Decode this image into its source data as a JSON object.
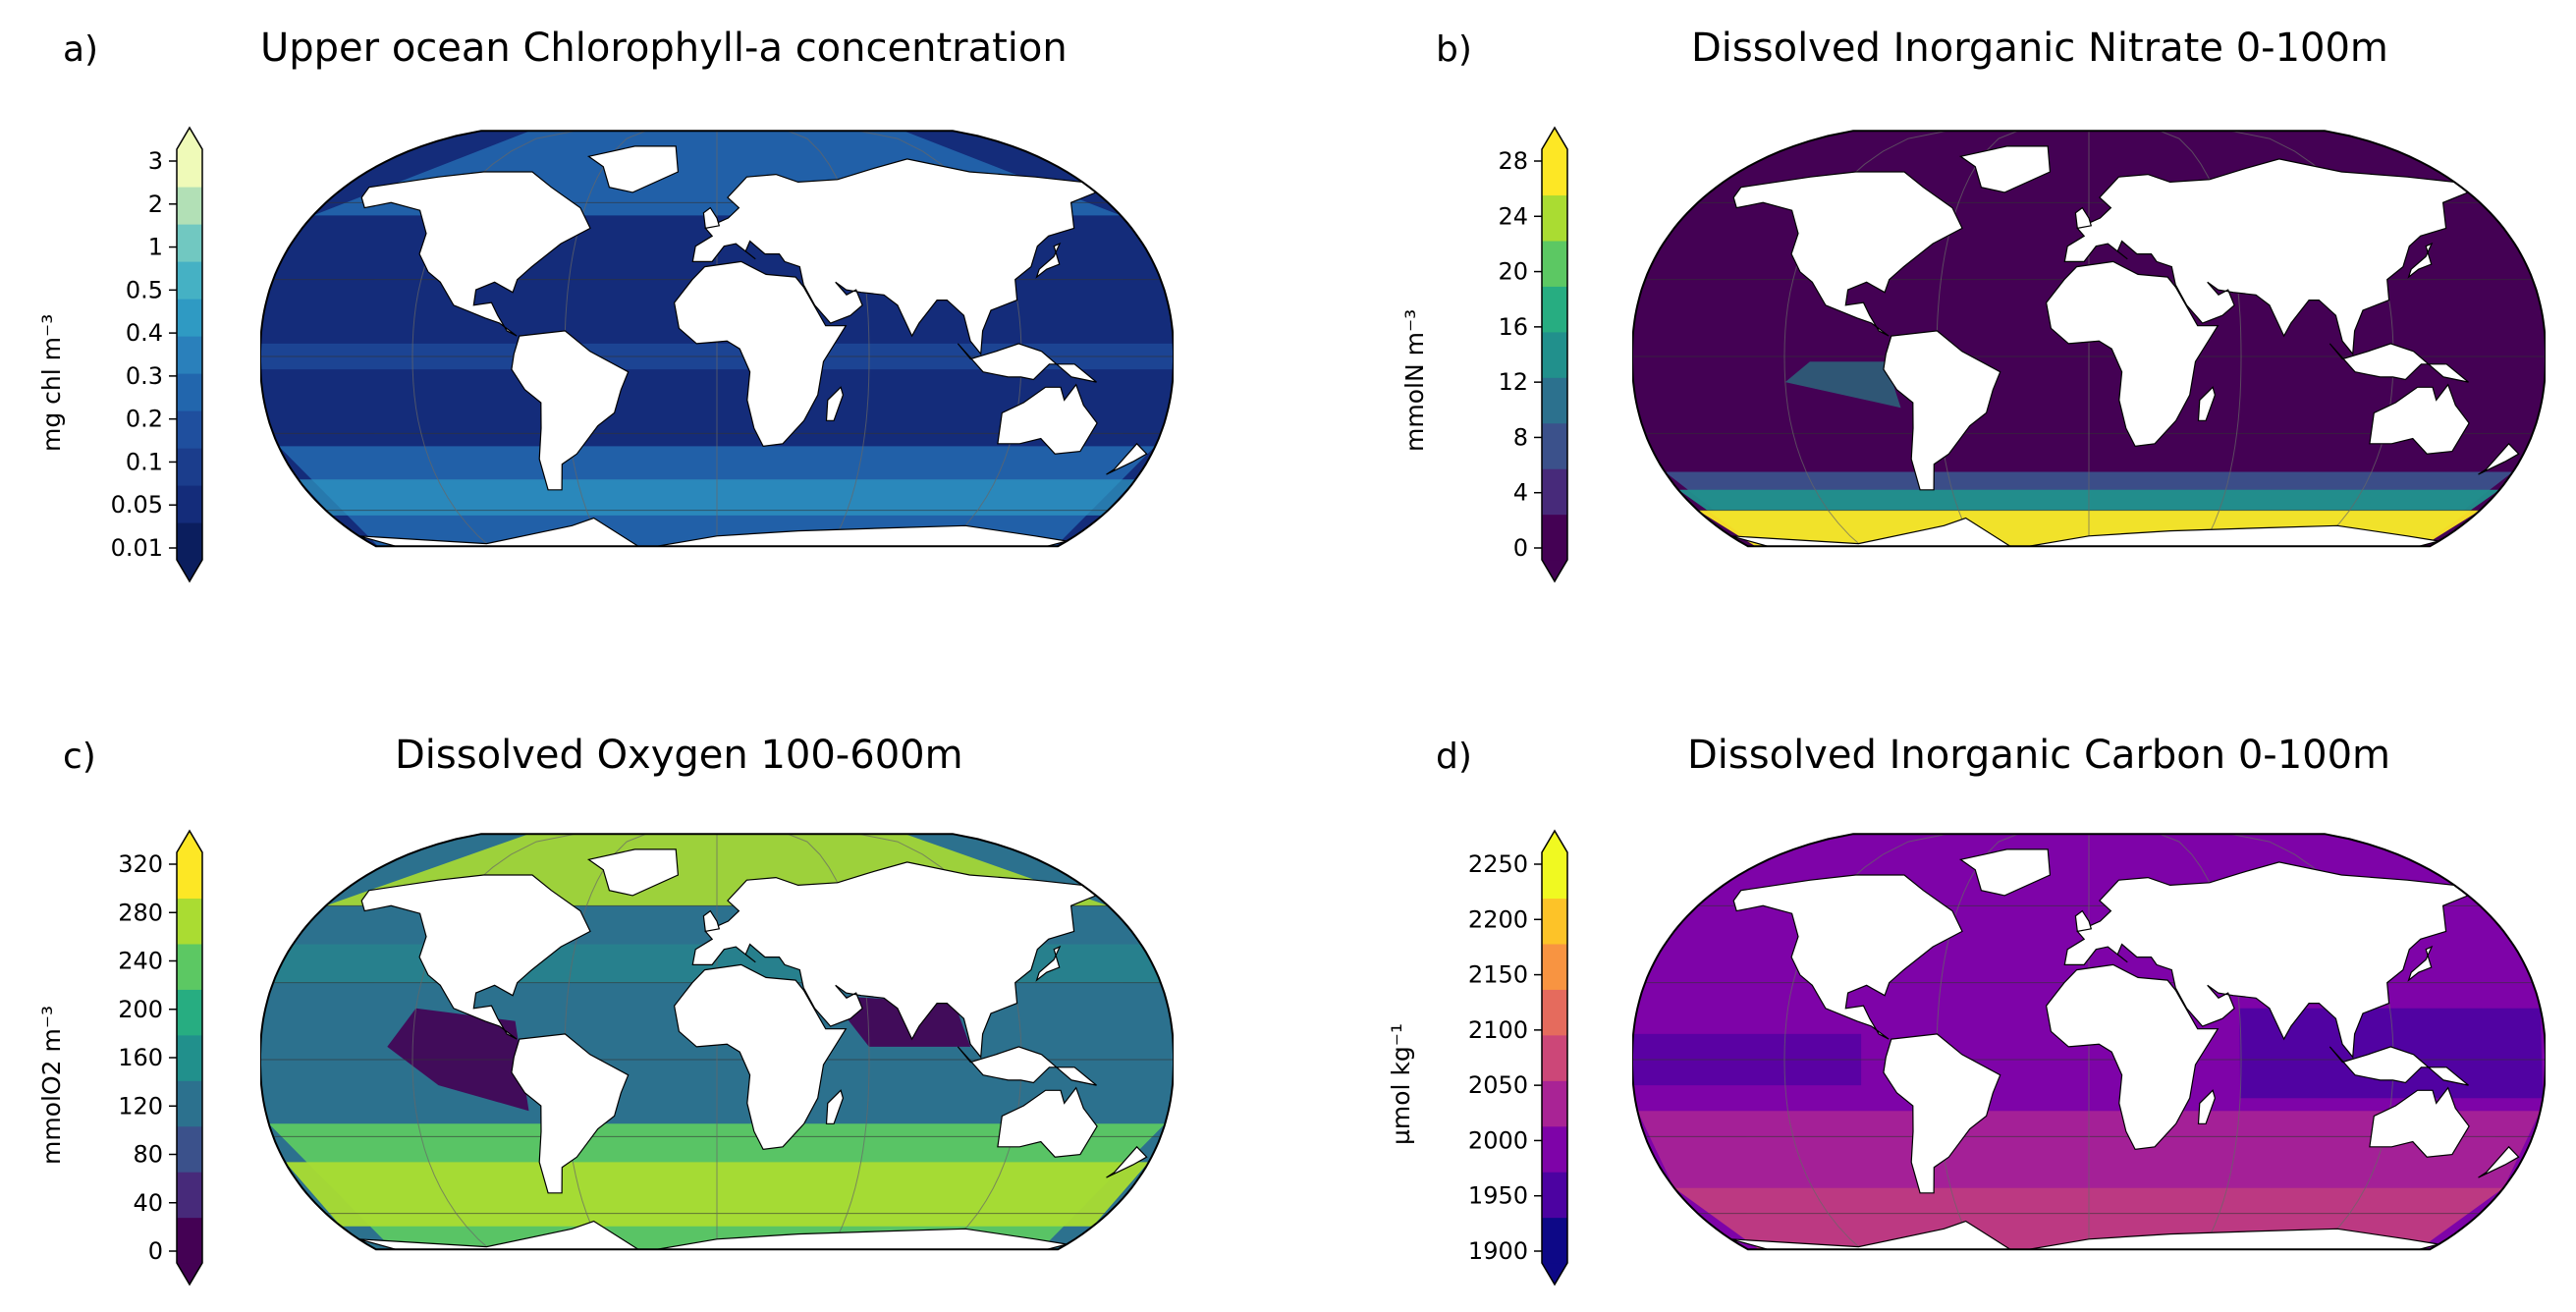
{
  "panels": [
    {
      "id": "a",
      "label": "a)",
      "title": "Upper ocean Chlorophyll-a concentration",
      "unit": "mg chl m⁻³",
      "ticks": [
        "0.01",
        "0.05",
        "0.1",
        "0.2",
        "0.3",
        "0.4",
        "0.5",
        "1",
        "2",
        "3"
      ],
      "colormap": [
        "#0b1e5e",
        "#142c7a",
        "#1b3d8c",
        "#1f4f9e",
        "#2266ad",
        "#2a80bb",
        "#2f9ac3",
        "#45b1c4",
        "#71c8c1",
        "#b2e0b6",
        "#effab8"
      ],
      "ocean_colors": [
        "#142c7a",
        "#1f4f9e",
        "#2266ad",
        "#2f9ac3"
      ]
    },
    {
      "id": "b",
      "label": "b)",
      "title": "Dissolved Inorganic Nitrate 0-100m",
      "unit": "mmolN m⁻³",
      "ticks": [
        "0",
        "4",
        "8",
        "12",
        "16",
        "20",
        "24",
        "28"
      ],
      "colormap": [
        "#440154",
        "#472a7a",
        "#3b518b",
        "#2c718e",
        "#21908c",
        "#27ad81",
        "#5cc863",
        "#aadc32",
        "#fde725"
      ],
      "ocean_colors": [
        "#440154",
        "#3b518b",
        "#21908c",
        "#fde725"
      ]
    },
    {
      "id": "c",
      "label": "c)",
      "title": "Dissolved Oxygen 100-600m",
      "unit": "mmolO2 m⁻³",
      "ticks": [
        "0",
        "40",
        "80",
        "120",
        "160",
        "200",
        "240",
        "280",
        "320"
      ],
      "colormap": [
        "#440154",
        "#472a7a",
        "#3b518b",
        "#2c718e",
        "#21908c",
        "#27ad81",
        "#5cc863",
        "#aadc32",
        "#fde725"
      ],
      "ocean_colors": [
        "#2c718e",
        "#21908c",
        "#5cc863",
        "#aadc32",
        "#440154"
      ]
    },
    {
      "id": "d",
      "label": "d)",
      "title": "Dissolved Inorganic Carbon 0-100m",
      "unit": "µmol kg⁻¹",
      "ticks": [
        "1900",
        "1950",
        "2000",
        "2050",
        "2100",
        "2150",
        "2200",
        "2250"
      ],
      "colormap": [
        "#0d0887",
        "#4c02a1",
        "#7e03a8",
        "#a92395",
        "#cc4778",
        "#e56b5d",
        "#f89441",
        "#fdc328",
        "#f0f921"
      ],
      "ocean_colors": [
        "#7e03a8",
        "#a92395",
        "#4c02a1",
        "#cc4778"
      ]
    }
  ]
}
